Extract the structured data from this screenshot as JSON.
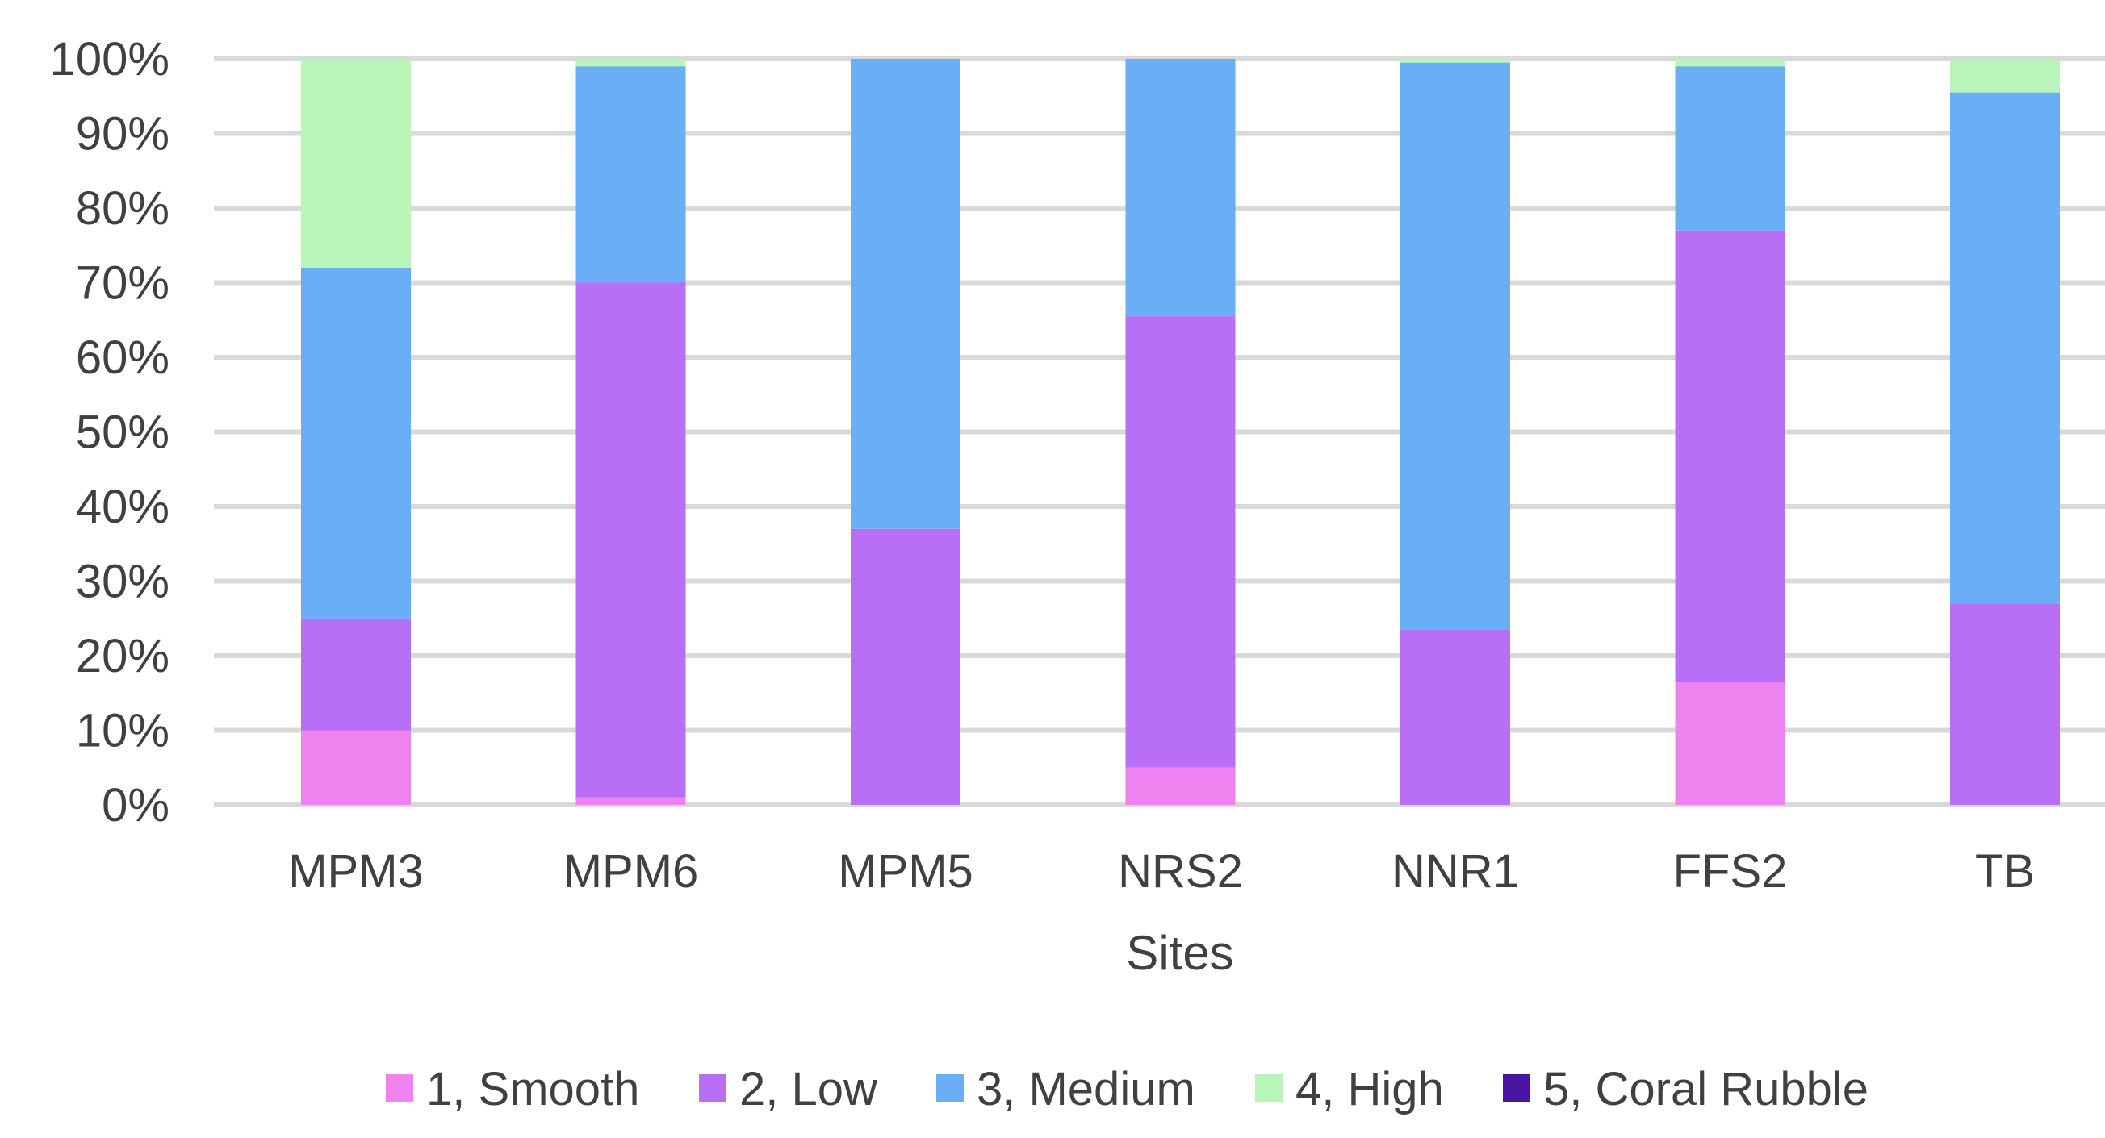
{
  "chart_data": {
    "type": "bar",
    "stacked": true,
    "percent": true,
    "title": "",
    "xlabel": "Sites",
    "ylabel": "",
    "ylim": [
      0,
      100
    ],
    "yticks": [
      "0%",
      "10%",
      "20%",
      "30%",
      "40%",
      "50%",
      "60%",
      "70%",
      "80%",
      "90%",
      "100%"
    ],
    "grid": true,
    "legend": "bottom",
    "categories": [
      "MPM3",
      "MPM6",
      "MPM5",
      "NRS2",
      "NNR1",
      "FFS2",
      "TB"
    ],
    "series": [
      {
        "name": "1, Smooth",
        "color": "#ee82ee",
        "values": [
          10,
          1,
          0,
          5,
          0,
          16.5,
          0
        ]
      },
      {
        "name": "2, Low",
        "color": "#b86ff5",
        "values": [
          15,
          69,
          37,
          60.5,
          23.5,
          60.5,
          27
        ]
      },
      {
        "name": "3, Medium",
        "color": "#6aaef5",
        "values": [
          47,
          29,
          63,
          34.5,
          76,
          22,
          68.5
        ]
      },
      {
        "name": "4, High",
        "color": "#b8f5b8",
        "values": [
          28,
          1,
          0,
          0,
          0.5,
          1,
          4.5
        ]
      },
      {
        "name": "5, Coral Rubble",
        "color": "#4a14a3",
        "values": [
          0,
          0,
          0,
          0,
          0,
          0,
          0
        ]
      }
    ]
  }
}
